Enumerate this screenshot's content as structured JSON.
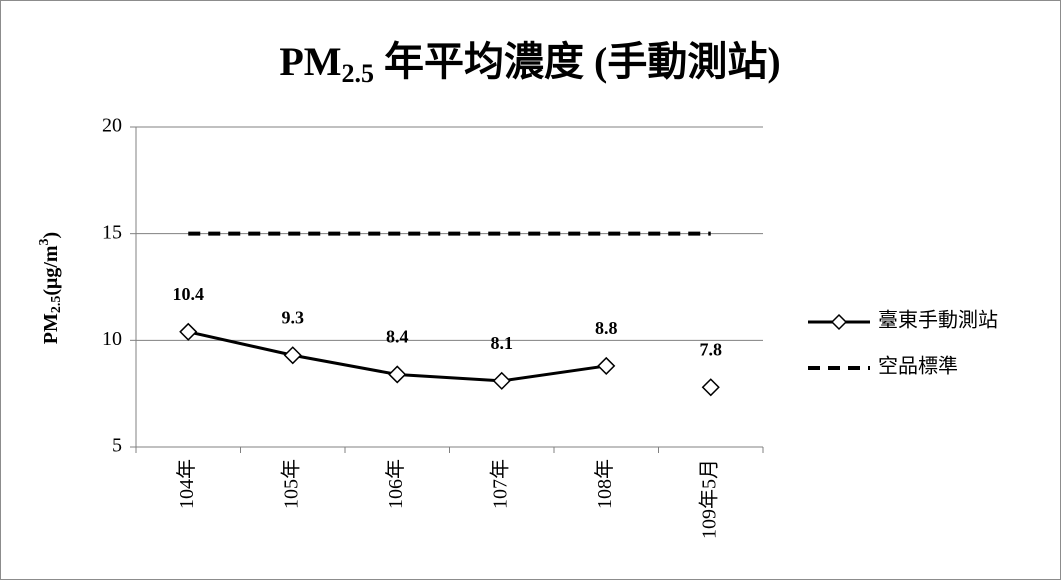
{
  "chart_data": {
    "type": "line",
    "title": [
      "PM",
      "2.5",
      " 年平均濃度 (手動測站)"
    ],
    "ylabel": [
      "PM",
      "2.5",
      "(μg/m",
      "3",
      ")"
    ],
    "categories": [
      "104年",
      "105年",
      "106年",
      "107年",
      "108年",
      "109年5月"
    ],
    "series": [
      {
        "name": "臺東手動測站",
        "color": "#000000",
        "values": [
          10.4,
          9.3,
          8.4,
          8.1,
          8.8,
          7.8
        ],
        "marker": "diamond",
        "dash": false,
        "data_labels": true,
        "line_pieces": [
          [
            0,
            4
          ],
          [
            5,
            5
          ]
        ]
      },
      {
        "name": "空品標準",
        "color": "#000000",
        "values": [
          15,
          15,
          15,
          15,
          15,
          15
        ],
        "marker": "none",
        "dash": true,
        "data_labels": false,
        "line_pieces": [
          [
            0,
            5
          ]
        ]
      }
    ],
    "ylim": [
      5,
      20
    ],
    "yticks": [
      5,
      10,
      15,
      20
    ],
    "grid": true,
    "legend": "right"
  }
}
